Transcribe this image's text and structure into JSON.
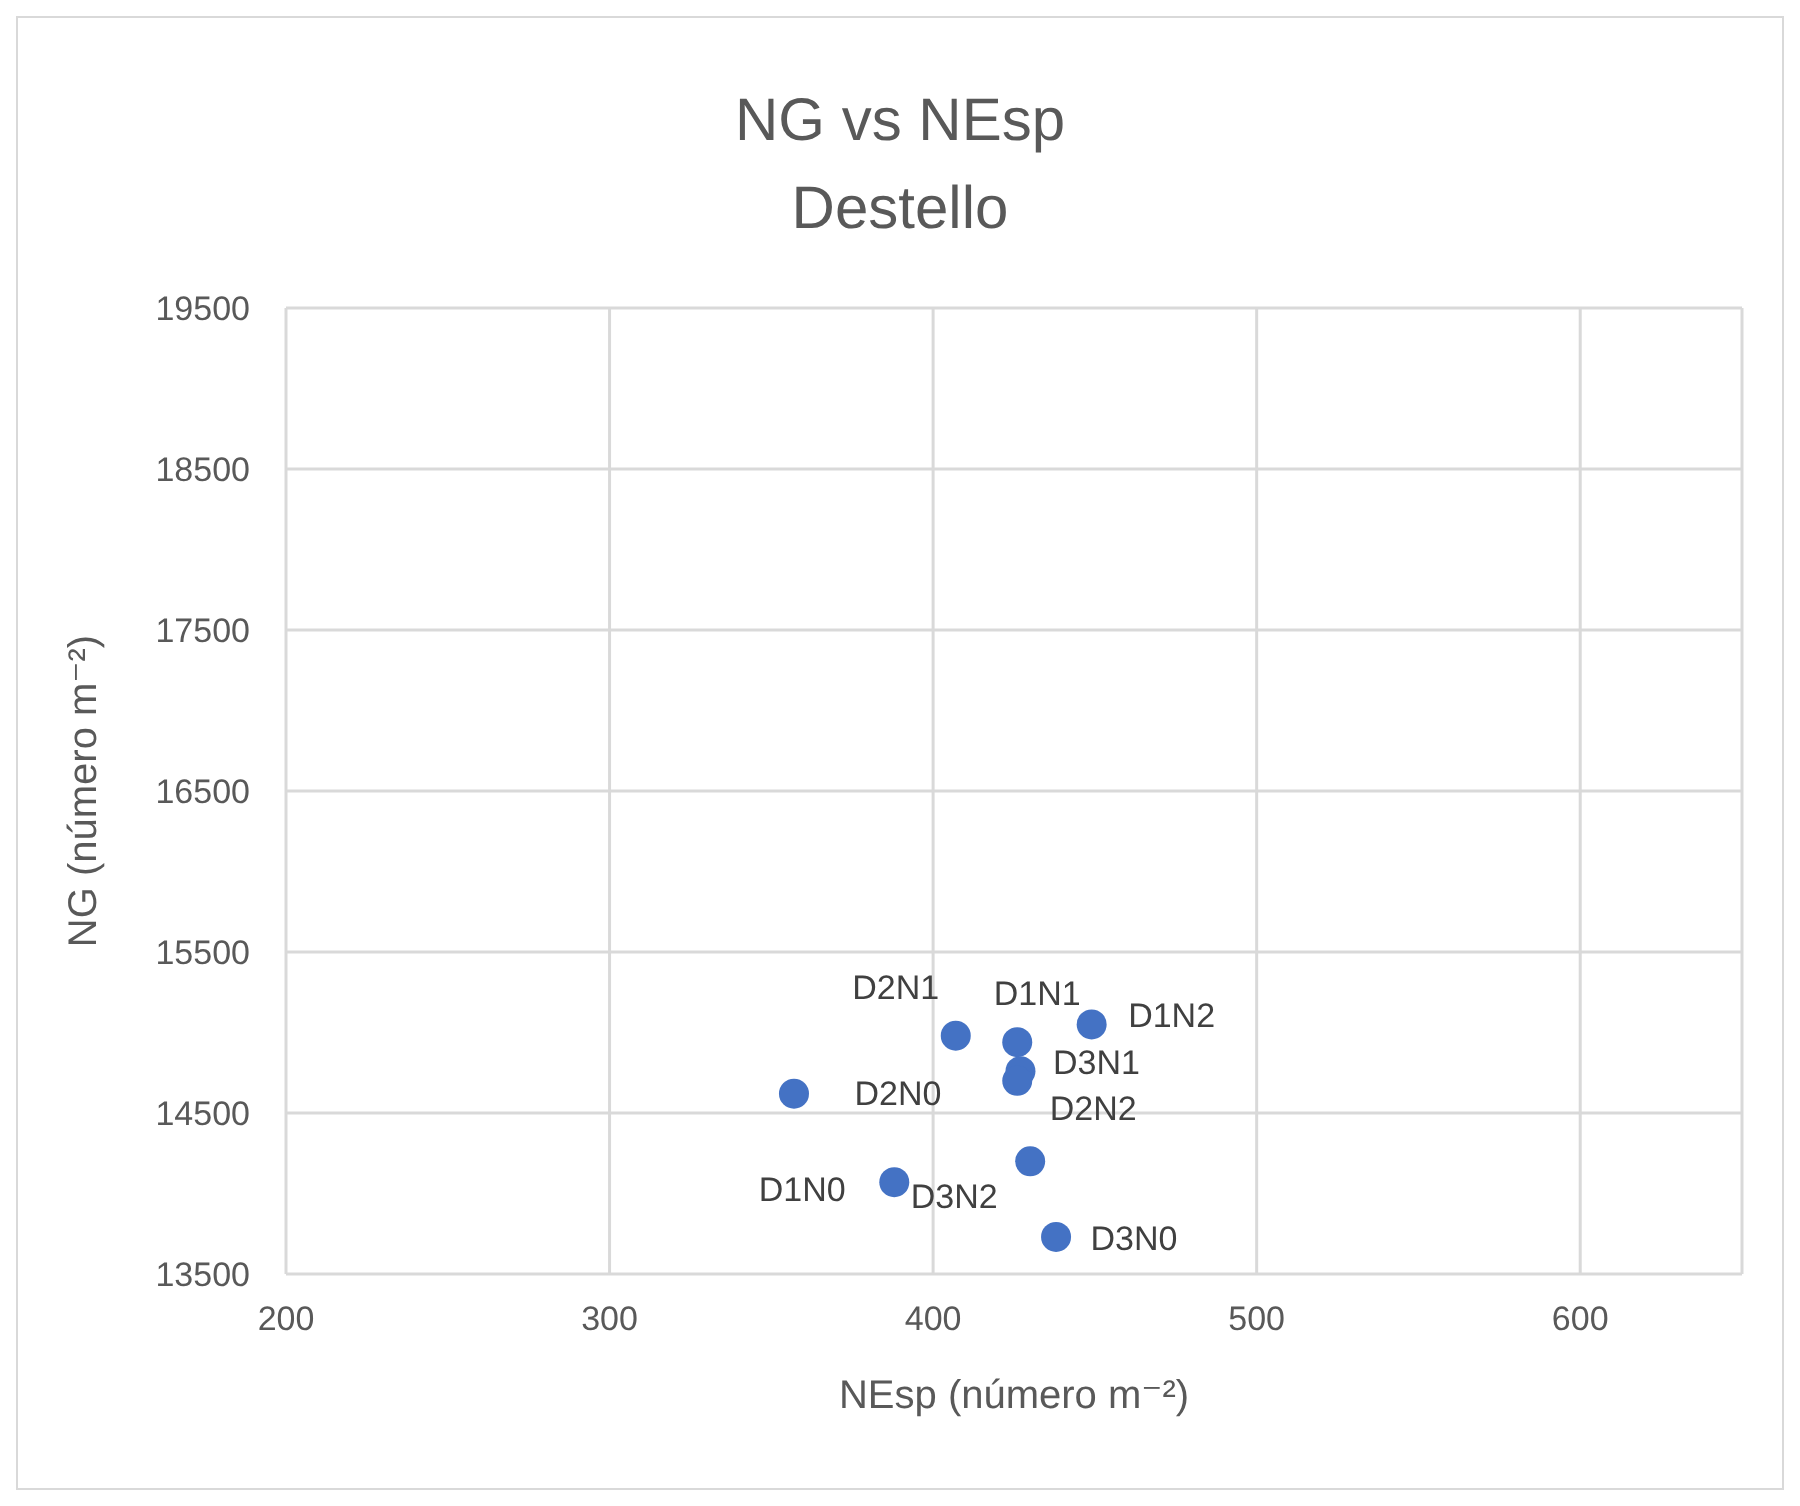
{
  "chart_data": {
    "type": "scatter",
    "title": "NG vs NEsp",
    "subtitle": "Destello",
    "xlabel": "NEsp (número m⁻²)",
    "ylabel": "NG (número m⁻²)",
    "x": [
      357,
      388,
      407,
      426,
      449,
      427,
      426,
      430,
      438
    ],
    "series": [
      {
        "color": "#4472c4",
        "values": [
          14620,
          14070,
          14980,
          14940,
          15050,
          14760,
          14700,
          14200,
          13730
        ],
        "value_labels": [
          "D2N0",
          "D1N0",
          "D2N1",
          "D1N1",
          "D1N2",
          "D3N1",
          "D2N2",
          "D3N2",
          "D3N0"
        ]
      }
    ],
    "xlim": [
      200,
      650
    ],
    "xticks": [
      200,
      300,
      400,
      500,
      600
    ],
    "ylim": [
      13500,
      19500
    ],
    "yticks": [
      13500,
      14500,
      15500,
      16500,
      17500,
      18500,
      19500
    ],
    "grid": true,
    "marker": "circle"
  }
}
